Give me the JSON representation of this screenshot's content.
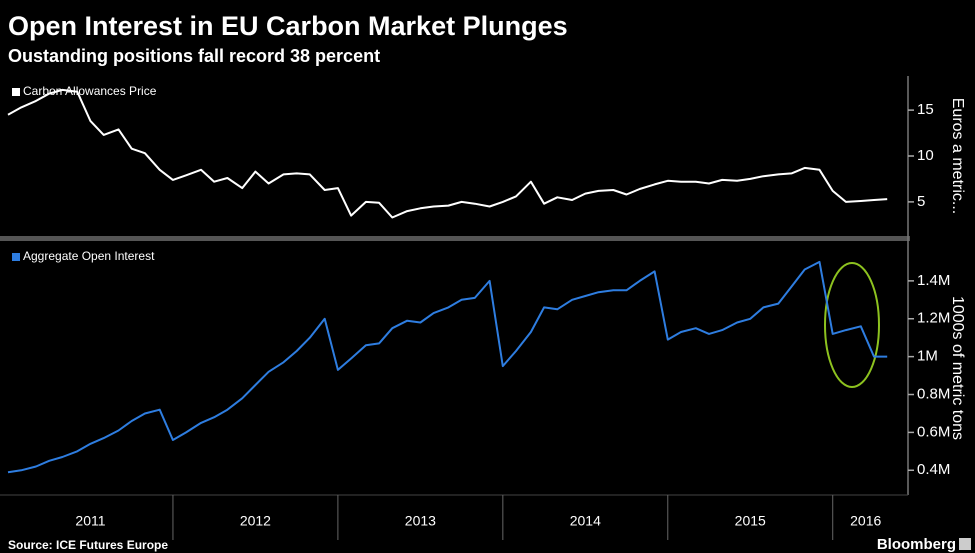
{
  "title": "Open Interest in EU Carbon Market Plunges",
  "subtitle": "Oustanding positions fall record 38 percent",
  "source": "Source: ICE Futures Europe",
  "brand": "Bloomberg",
  "chart_data": [
    {
      "type": "line",
      "series": [
        {
          "name": "Carbon Allowances Price",
          "color": "#ffffff",
          "values": [
            14.5,
            15.3,
            16.0,
            16.8,
            17.2,
            17.0,
            13.8,
            12.3,
            12.9,
            10.8,
            10.3,
            8.5,
            7.4,
            7.9,
            8.5,
            7.2,
            7.6,
            6.5,
            8.3,
            7.0,
            8.0,
            8.1,
            8.0,
            6.3,
            6.5,
            3.5,
            5.0,
            4.9,
            3.3,
            4.0,
            4.3,
            4.5,
            4.6,
            5.0,
            4.8,
            4.5,
            5.0,
            5.6,
            7.2,
            4.8,
            5.5,
            5.2,
            5.9,
            6.2,
            6.3,
            5.8,
            6.4,
            6.9,
            7.3,
            7.2,
            7.2,
            7.0,
            7.4,
            7.3,
            7.5,
            7.8,
            8.0,
            8.1,
            8.7,
            8.5,
            6.2,
            5.0,
            5.1,
            5.2,
            5.3
          ]
        }
      ],
      "x": [
        2011,
        2011.08,
        2011.17,
        2011.25,
        2011.33,
        2011.42,
        2011.5,
        2011.58,
        2011.67,
        2011.75,
        2011.83,
        2011.92,
        2012,
        2012.08,
        2012.17,
        2012.25,
        2012.33,
        2012.42,
        2012.5,
        2012.58,
        2012.67,
        2012.75,
        2012.83,
        2012.92,
        2013,
        2013.08,
        2013.17,
        2013.25,
        2013.33,
        2013.42,
        2013.5,
        2013.58,
        2013.67,
        2013.75,
        2013.83,
        2013.92,
        2014,
        2014.08,
        2014.17,
        2014.25,
        2014.33,
        2014.42,
        2014.5,
        2014.58,
        2014.67,
        2014.75,
        2014.83,
        2014.92,
        2015,
        2015.08,
        2015.17,
        2015.25,
        2015.33,
        2015.42,
        2015.5,
        2015.58,
        2015.67,
        2015.75,
        2015.83,
        2015.92,
        2016,
        2016.08,
        2016.17,
        2016.25,
        2016.33
      ],
      "xlim": [
        2011,
        2016.42
      ],
      "ylim": [
        1.5,
        18.5
      ],
      "yticks": [
        5,
        10,
        15
      ],
      "axis_label": "Euros a metric..."
    },
    {
      "type": "line",
      "series": [
        {
          "name": "Aggregate Open Interest",
          "color": "#2e7de0",
          "values": [
            390000,
            400000,
            420000,
            450000,
            470000,
            500000,
            540000,
            570000,
            610000,
            660000,
            700000,
            720000,
            560000,
            600000,
            650000,
            680000,
            720000,
            780000,
            850000,
            920000,
            970000,
            1030000,
            1100000,
            1200000,
            930000,
            990000,
            1060000,
            1070000,
            1150000,
            1190000,
            1180000,
            1230000,
            1260000,
            1300000,
            1310000,
            1400000,
            950000,
            1030000,
            1130000,
            1260000,
            1250000,
            1300000,
            1320000,
            1340000,
            1350000,
            1350000,
            1400000,
            1450000,
            1090000,
            1130000,
            1150000,
            1120000,
            1140000,
            1180000,
            1200000,
            1260000,
            1280000,
            1370000,
            1460000,
            1500000,
            1120000,
            1140000,
            1160000,
            1000000,
            1000000
          ]
        }
      ],
      "x": [
        2011,
        2011.08,
        2011.17,
        2011.25,
        2011.33,
        2011.42,
        2011.5,
        2011.58,
        2011.67,
        2011.75,
        2011.83,
        2011.92,
        2012,
        2012.08,
        2012.17,
        2012.25,
        2012.33,
        2012.42,
        2012.5,
        2012.58,
        2012.67,
        2012.75,
        2012.83,
        2012.92,
        2013,
        2013.08,
        2013.17,
        2013.25,
        2013.33,
        2013.42,
        2013.5,
        2013.58,
        2013.67,
        2013.75,
        2013.83,
        2013.92,
        2014,
        2014.08,
        2014.17,
        2014.25,
        2014.33,
        2014.42,
        2014.5,
        2014.58,
        2014.67,
        2014.75,
        2014.83,
        2014.92,
        2015,
        2015.08,
        2015.17,
        2015.25,
        2015.33,
        2015.42,
        2015.5,
        2015.58,
        2015.67,
        2015.75,
        2015.83,
        2015.92,
        2016,
        2016.08,
        2016.17,
        2016.25,
        2016.33
      ],
      "xlim": [
        2011,
        2016.42
      ],
      "ylim": [
        280000,
        1600000
      ],
      "yticks": [
        {
          "value": 400000,
          "label": "0.4M"
        },
        {
          "value": 600000,
          "label": "0.6M"
        },
        {
          "value": 800000,
          "label": "0.8M"
        },
        {
          "value": 1000000,
          "label": "1M"
        },
        {
          "value": 1200000,
          "label": "1.2M"
        },
        {
          "value": 1400000,
          "label": "1.4M"
        }
      ],
      "xticks": [
        {
          "value": 2011.5,
          "label": "2011"
        },
        {
          "value": 2012.5,
          "label": "2012"
        },
        {
          "value": 2013.5,
          "label": "2013"
        },
        {
          "value": 2014.5,
          "label": "2014"
        },
        {
          "value": 2015.5,
          "label": "2015"
        },
        {
          "value": 2016.2,
          "label": "2016"
        }
      ],
      "axis_label": "1000s of metric tons"
    }
  ]
}
